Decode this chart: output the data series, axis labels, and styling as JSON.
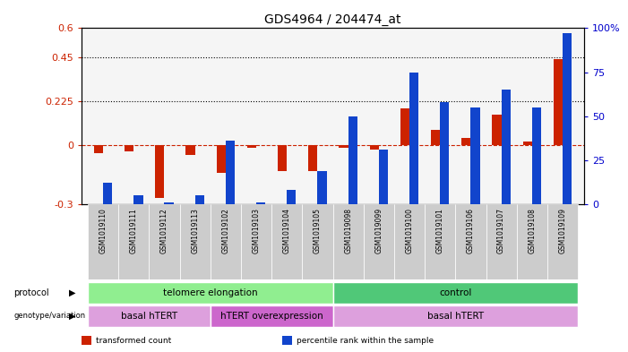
{
  "title": "GDS4964 / 204474_at",
  "samples": [
    "GSM1019110",
    "GSM1019111",
    "GSM1019112",
    "GSM1019113",
    "GSM1019102",
    "GSM1019103",
    "GSM1019104",
    "GSM1019105",
    "GSM1019098",
    "GSM1019099",
    "GSM1019100",
    "GSM1019101",
    "GSM1019106",
    "GSM1019107",
    "GSM1019108",
    "GSM1019109"
  ],
  "red_values": [
    -0.04,
    -0.03,
    -0.27,
    -0.05,
    -0.14,
    -0.01,
    -0.13,
    -0.13,
    -0.01,
    -0.02,
    0.19,
    0.08,
    0.04,
    0.16,
    0.02,
    0.44
  ],
  "blue_percentile": [
    12,
    5,
    1,
    5,
    36,
    1,
    8,
    19,
    50,
    31,
    75,
    58,
    55,
    65,
    55,
    97
  ],
  "ylim_left": [
    -0.3,
    0.6
  ],
  "ylim_right": [
    0,
    100
  ],
  "yticks_left": [
    -0.3,
    0.0,
    0.225,
    0.45,
    0.6
  ],
  "ytick_labels_left": [
    "-0.3",
    "0",
    "0.225",
    "0.45",
    "0.6"
  ],
  "yticks_right": [
    0,
    25,
    50,
    75,
    100
  ],
  "ytick_labels_right": [
    "0",
    "25",
    "50",
    "75",
    "100%"
  ],
  "hlines": [
    0.225,
    0.45
  ],
  "protocol_groups": [
    {
      "label": "telomere elongation",
      "start": 0,
      "end": 8,
      "color": "#90EE90"
    },
    {
      "label": "control",
      "start": 8,
      "end": 16,
      "color": "#50C878"
    }
  ],
  "genotype_groups": [
    {
      "label": "basal hTERT",
      "start": 0,
      "end": 4,
      "color": "#DDA0DD"
    },
    {
      "label": "hTERT overexpression",
      "start": 4,
      "end": 8,
      "color": "#CC66CC"
    },
    {
      "label": "basal hTERT",
      "start": 8,
      "end": 16,
      "color": "#DDA0DD"
    }
  ],
  "legend_items": [
    {
      "color": "#CC2200",
      "label": "transformed count"
    },
    {
      "color": "#1144CC",
      "label": "percentile rank within the sample"
    }
  ],
  "bar_color_red": "#CC2200",
  "bar_color_blue": "#1144CC",
  "axis_label_color_left": "#CC2200",
  "axis_label_color_right": "#0000CC",
  "background_plot": "#F5F5F5",
  "background_sample_labels": "#CCCCCC"
}
